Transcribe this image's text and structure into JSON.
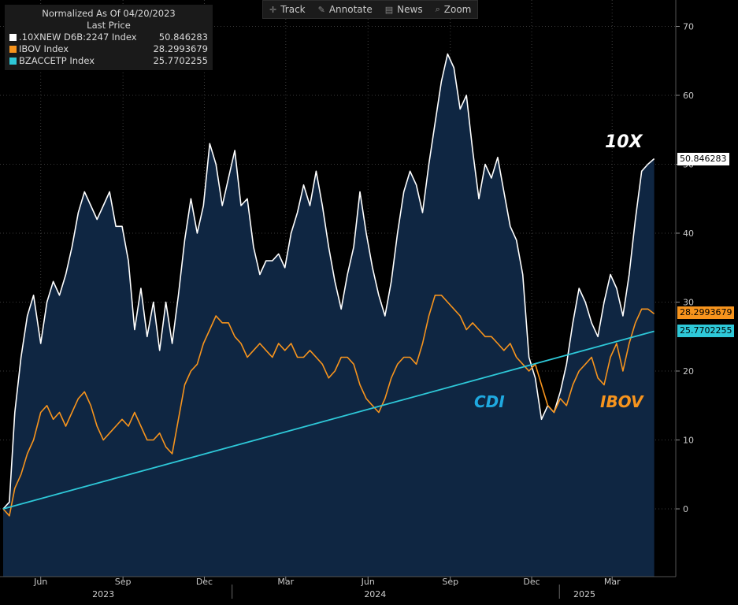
{
  "toolbar": {
    "track_label": "Track",
    "annotate_label": "Annotate",
    "news_label": "News",
    "zoom_label": "Zoom"
  },
  "legend": {
    "header_line1": "Normalized As Of 04/20/2023",
    "header_line2": "Last Price",
    "entries": [
      {
        "name": ".10XNEW D6B:2247 Index",
        "value": "50.846283",
        "color": "#ffffff"
      },
      {
        "name": "IBOV Index",
        "value": "28.2993679",
        "color": "#f7941d"
      },
      {
        "name": "BZACCETP Index",
        "value": "25.7702255",
        "color": "#2ec8d8"
      }
    ]
  },
  "annotations": {
    "tenx": "10X",
    "cdi": "CDI",
    "ibov": "IBOV"
  },
  "last_value_tags": {
    "tenx": "50.846283",
    "ibov": "28.2993679",
    "cdi": "25.7702255"
  },
  "colors": {
    "background": "#000000",
    "area_fill": "#0f2642",
    "tenx": "#ffffff",
    "ibov": "#f7941d",
    "cdi": "#2ec8d8"
  },
  "chart_data": {
    "type": "line",
    "y_axis_position": "right",
    "ylim": [
      -10,
      73
    ],
    "y_ticks": [
      0,
      10,
      20,
      30,
      40,
      50,
      60,
      70
    ],
    "x_ticks": [
      "Jun",
      "Sep",
      "Dec",
      "Mar",
      "Jun",
      "Sep",
      "Dec",
      "Mar"
    ],
    "x_tick_dates": [
      "2023-06-01",
      "2023-09-01",
      "2023-12-01",
      "2024-03-01",
      "2024-06-01",
      "2024-09-01",
      "2024-12-01",
      "2025-03-01"
    ],
    "years": [
      "2023",
      "2024",
      "2025"
    ],
    "xlim": [
      "2023-04-20",
      "2025-04-20"
    ],
    "series": [
      {
        "name": ".10XNEW D6B:2247 Index",
        "area_fill": true,
        "points": [
          [
            "2023-04-20",
            0
          ],
          [
            "2023-04-27",
            1
          ],
          [
            "2023-05-03",
            14
          ],
          [
            "2023-05-10",
            22
          ],
          [
            "2023-05-17",
            28
          ],
          [
            "2023-05-24",
            31
          ],
          [
            "2023-06-01",
            24
          ],
          [
            "2023-06-08",
            30
          ],
          [
            "2023-06-15",
            33
          ],
          [
            "2023-06-22",
            31
          ],
          [
            "2023-06-29",
            34
          ],
          [
            "2023-07-06",
            38
          ],
          [
            "2023-07-13",
            43
          ],
          [
            "2023-07-20",
            46
          ],
          [
            "2023-07-27",
            44
          ],
          [
            "2023-08-03",
            42
          ],
          [
            "2023-08-10",
            44
          ],
          [
            "2023-08-17",
            46
          ],
          [
            "2023-08-24",
            41
          ],
          [
            "2023-08-31",
            41
          ],
          [
            "2023-09-07",
            36
          ],
          [
            "2023-09-14",
            26
          ],
          [
            "2023-09-21",
            32
          ],
          [
            "2023-09-28",
            25
          ],
          [
            "2023-10-05",
            30
          ],
          [
            "2023-10-12",
            23
          ],
          [
            "2023-10-19",
            30
          ],
          [
            "2023-10-26",
            24
          ],
          [
            "2023-11-02",
            31
          ],
          [
            "2023-11-09",
            39
          ],
          [
            "2023-11-16",
            45
          ],
          [
            "2023-11-23",
            40
          ],
          [
            "2023-11-30",
            44
          ],
          [
            "2023-12-07",
            53
          ],
          [
            "2023-12-14",
            50
          ],
          [
            "2023-12-21",
            44
          ],
          [
            "2023-12-28",
            48
          ],
          [
            "2024-01-04",
            52
          ],
          [
            "2024-01-11",
            44
          ],
          [
            "2024-01-18",
            45
          ],
          [
            "2024-01-25",
            38
          ],
          [
            "2024-02-01",
            34
          ],
          [
            "2024-02-08",
            36
          ],
          [
            "2024-02-15",
            36
          ],
          [
            "2024-02-22",
            37
          ],
          [
            "2024-02-29",
            35
          ],
          [
            "2024-03-07",
            40
          ],
          [
            "2024-03-14",
            43
          ],
          [
            "2024-03-21",
            47
          ],
          [
            "2024-03-28",
            44
          ],
          [
            "2024-04-04",
            49
          ],
          [
            "2024-04-11",
            44
          ],
          [
            "2024-04-18",
            38
          ],
          [
            "2024-04-25",
            33
          ],
          [
            "2024-05-02",
            29
          ],
          [
            "2024-05-09",
            34
          ],
          [
            "2024-05-16",
            38
          ],
          [
            "2024-05-23",
            46
          ],
          [
            "2024-05-30",
            40
          ],
          [
            "2024-06-06",
            35
          ],
          [
            "2024-06-13",
            31
          ],
          [
            "2024-06-20",
            28
          ],
          [
            "2024-06-27",
            33
          ],
          [
            "2024-07-04",
            40
          ],
          [
            "2024-07-11",
            46
          ],
          [
            "2024-07-18",
            49
          ],
          [
            "2024-07-25",
            47
          ],
          [
            "2024-08-01",
            43
          ],
          [
            "2024-08-08",
            50
          ],
          [
            "2024-08-15",
            56
          ],
          [
            "2024-08-22",
            62
          ],
          [
            "2024-08-29",
            66
          ],
          [
            "2024-09-05",
            64
          ],
          [
            "2024-09-12",
            58
          ],
          [
            "2024-09-19",
            60
          ],
          [
            "2024-09-26",
            52
          ],
          [
            "2024-10-03",
            45
          ],
          [
            "2024-10-10",
            50
          ],
          [
            "2024-10-17",
            48
          ],
          [
            "2024-10-24",
            51
          ],
          [
            "2024-10-31",
            46
          ],
          [
            "2024-11-07",
            41
          ],
          [
            "2024-11-14",
            39
          ],
          [
            "2024-11-21",
            34
          ],
          [
            "2024-11-28",
            22
          ],
          [
            "2024-12-05",
            19
          ],
          [
            "2024-12-12",
            13
          ],
          [
            "2024-12-19",
            15
          ],
          [
            "2024-12-26",
            14
          ],
          [
            "2025-01-02",
            17
          ],
          [
            "2025-01-09",
            21
          ],
          [
            "2025-01-16",
            27
          ],
          [
            "2025-01-23",
            32
          ],
          [
            "2025-01-30",
            30
          ],
          [
            "2025-02-06",
            27
          ],
          [
            "2025-02-13",
            25
          ],
          [
            "2025-02-20",
            30
          ],
          [
            "2025-02-27",
            34
          ],
          [
            "2025-03-06",
            32
          ],
          [
            "2025-03-13",
            28
          ],
          [
            "2025-03-20",
            34
          ],
          [
            "2025-03-27",
            42
          ],
          [
            "2025-04-03",
            49
          ],
          [
            "2025-04-10",
            50
          ],
          [
            "2025-04-17",
            50.8
          ]
        ]
      },
      {
        "name": "IBOV Index",
        "points": [
          [
            "2023-04-20",
            0
          ],
          [
            "2023-04-27",
            -1
          ],
          [
            "2023-05-03",
            3
          ],
          [
            "2023-05-10",
            5
          ],
          [
            "2023-05-17",
            8
          ],
          [
            "2023-05-24",
            10
          ],
          [
            "2023-06-01",
            14
          ],
          [
            "2023-06-08",
            15
          ],
          [
            "2023-06-15",
            13
          ],
          [
            "2023-06-22",
            14
          ],
          [
            "2023-06-29",
            12
          ],
          [
            "2023-07-06",
            14
          ],
          [
            "2023-07-13",
            16
          ],
          [
            "2023-07-20",
            17
          ],
          [
            "2023-07-27",
            15
          ],
          [
            "2023-08-03",
            12
          ],
          [
            "2023-08-10",
            10
          ],
          [
            "2023-08-17",
            11
          ],
          [
            "2023-08-24",
            12
          ],
          [
            "2023-08-31",
            13
          ],
          [
            "2023-09-07",
            12
          ],
          [
            "2023-09-14",
            14
          ],
          [
            "2023-09-21",
            12
          ],
          [
            "2023-09-28",
            10
          ],
          [
            "2023-10-05",
            10
          ],
          [
            "2023-10-12",
            11
          ],
          [
            "2023-10-19",
            9
          ],
          [
            "2023-10-26",
            8
          ],
          [
            "2023-11-02",
            13
          ],
          [
            "2023-11-09",
            18
          ],
          [
            "2023-11-16",
            20
          ],
          [
            "2023-11-23",
            21
          ],
          [
            "2023-11-30",
            24
          ],
          [
            "2023-12-07",
            26
          ],
          [
            "2023-12-14",
            28
          ],
          [
            "2023-12-21",
            27
          ],
          [
            "2023-12-28",
            27
          ],
          [
            "2024-01-04",
            25
          ],
          [
            "2024-01-11",
            24
          ],
          [
            "2024-01-18",
            22
          ],
          [
            "2024-01-25",
            23
          ],
          [
            "2024-02-01",
            24
          ],
          [
            "2024-02-08",
            23
          ],
          [
            "2024-02-15",
            22
          ],
          [
            "2024-02-22",
            24
          ],
          [
            "2024-02-29",
            23
          ],
          [
            "2024-03-07",
            24
          ],
          [
            "2024-03-14",
            22
          ],
          [
            "2024-03-21",
            22
          ],
          [
            "2024-03-28",
            23
          ],
          [
            "2024-04-04",
            22
          ],
          [
            "2024-04-11",
            21
          ],
          [
            "2024-04-18",
            19
          ],
          [
            "2024-04-25",
            20
          ],
          [
            "2024-05-02",
            22
          ],
          [
            "2024-05-09",
            22
          ],
          [
            "2024-05-16",
            21
          ],
          [
            "2024-05-23",
            18
          ],
          [
            "2024-05-30",
            16
          ],
          [
            "2024-06-06",
            15
          ],
          [
            "2024-06-13",
            14
          ],
          [
            "2024-06-20",
            16
          ],
          [
            "2024-06-27",
            19
          ],
          [
            "2024-07-04",
            21
          ],
          [
            "2024-07-11",
            22
          ],
          [
            "2024-07-18",
            22
          ],
          [
            "2024-07-25",
            21
          ],
          [
            "2024-08-01",
            24
          ],
          [
            "2024-08-08",
            28
          ],
          [
            "2024-08-15",
            31
          ],
          [
            "2024-08-22",
            31
          ],
          [
            "2024-08-29",
            30
          ],
          [
            "2024-09-05",
            29
          ],
          [
            "2024-09-12",
            28
          ],
          [
            "2024-09-19",
            26
          ],
          [
            "2024-09-26",
            27
          ],
          [
            "2024-10-03",
            26
          ],
          [
            "2024-10-10",
            25
          ],
          [
            "2024-10-17",
            25
          ],
          [
            "2024-10-24",
            24
          ],
          [
            "2024-10-31",
            23
          ],
          [
            "2024-11-07",
            24
          ],
          [
            "2024-11-14",
            22
          ],
          [
            "2024-11-21",
            21
          ],
          [
            "2024-11-28",
            20
          ],
          [
            "2024-12-05",
            21
          ],
          [
            "2024-12-12",
            18
          ],
          [
            "2024-12-19",
            15
          ],
          [
            "2024-12-26",
            14
          ],
          [
            "2025-01-02",
            16
          ],
          [
            "2025-01-09",
            15
          ],
          [
            "2025-01-16",
            18
          ],
          [
            "2025-01-23",
            20
          ],
          [
            "2025-01-30",
            21
          ],
          [
            "2025-02-06",
            22
          ],
          [
            "2025-02-13",
            19
          ],
          [
            "2025-02-20",
            18
          ],
          [
            "2025-02-27",
            22
          ],
          [
            "2025-03-06",
            24
          ],
          [
            "2025-03-13",
            20
          ],
          [
            "2025-03-20",
            24
          ],
          [
            "2025-03-27",
            27
          ],
          [
            "2025-04-03",
            29
          ],
          [
            "2025-04-10",
            29
          ],
          [
            "2025-04-17",
            28.3
          ]
        ]
      },
      {
        "name": "BZACCETP Index",
        "points": [
          [
            "2023-04-20",
            0
          ],
          [
            "2025-04-17",
            25.77
          ]
        ]
      }
    ]
  }
}
